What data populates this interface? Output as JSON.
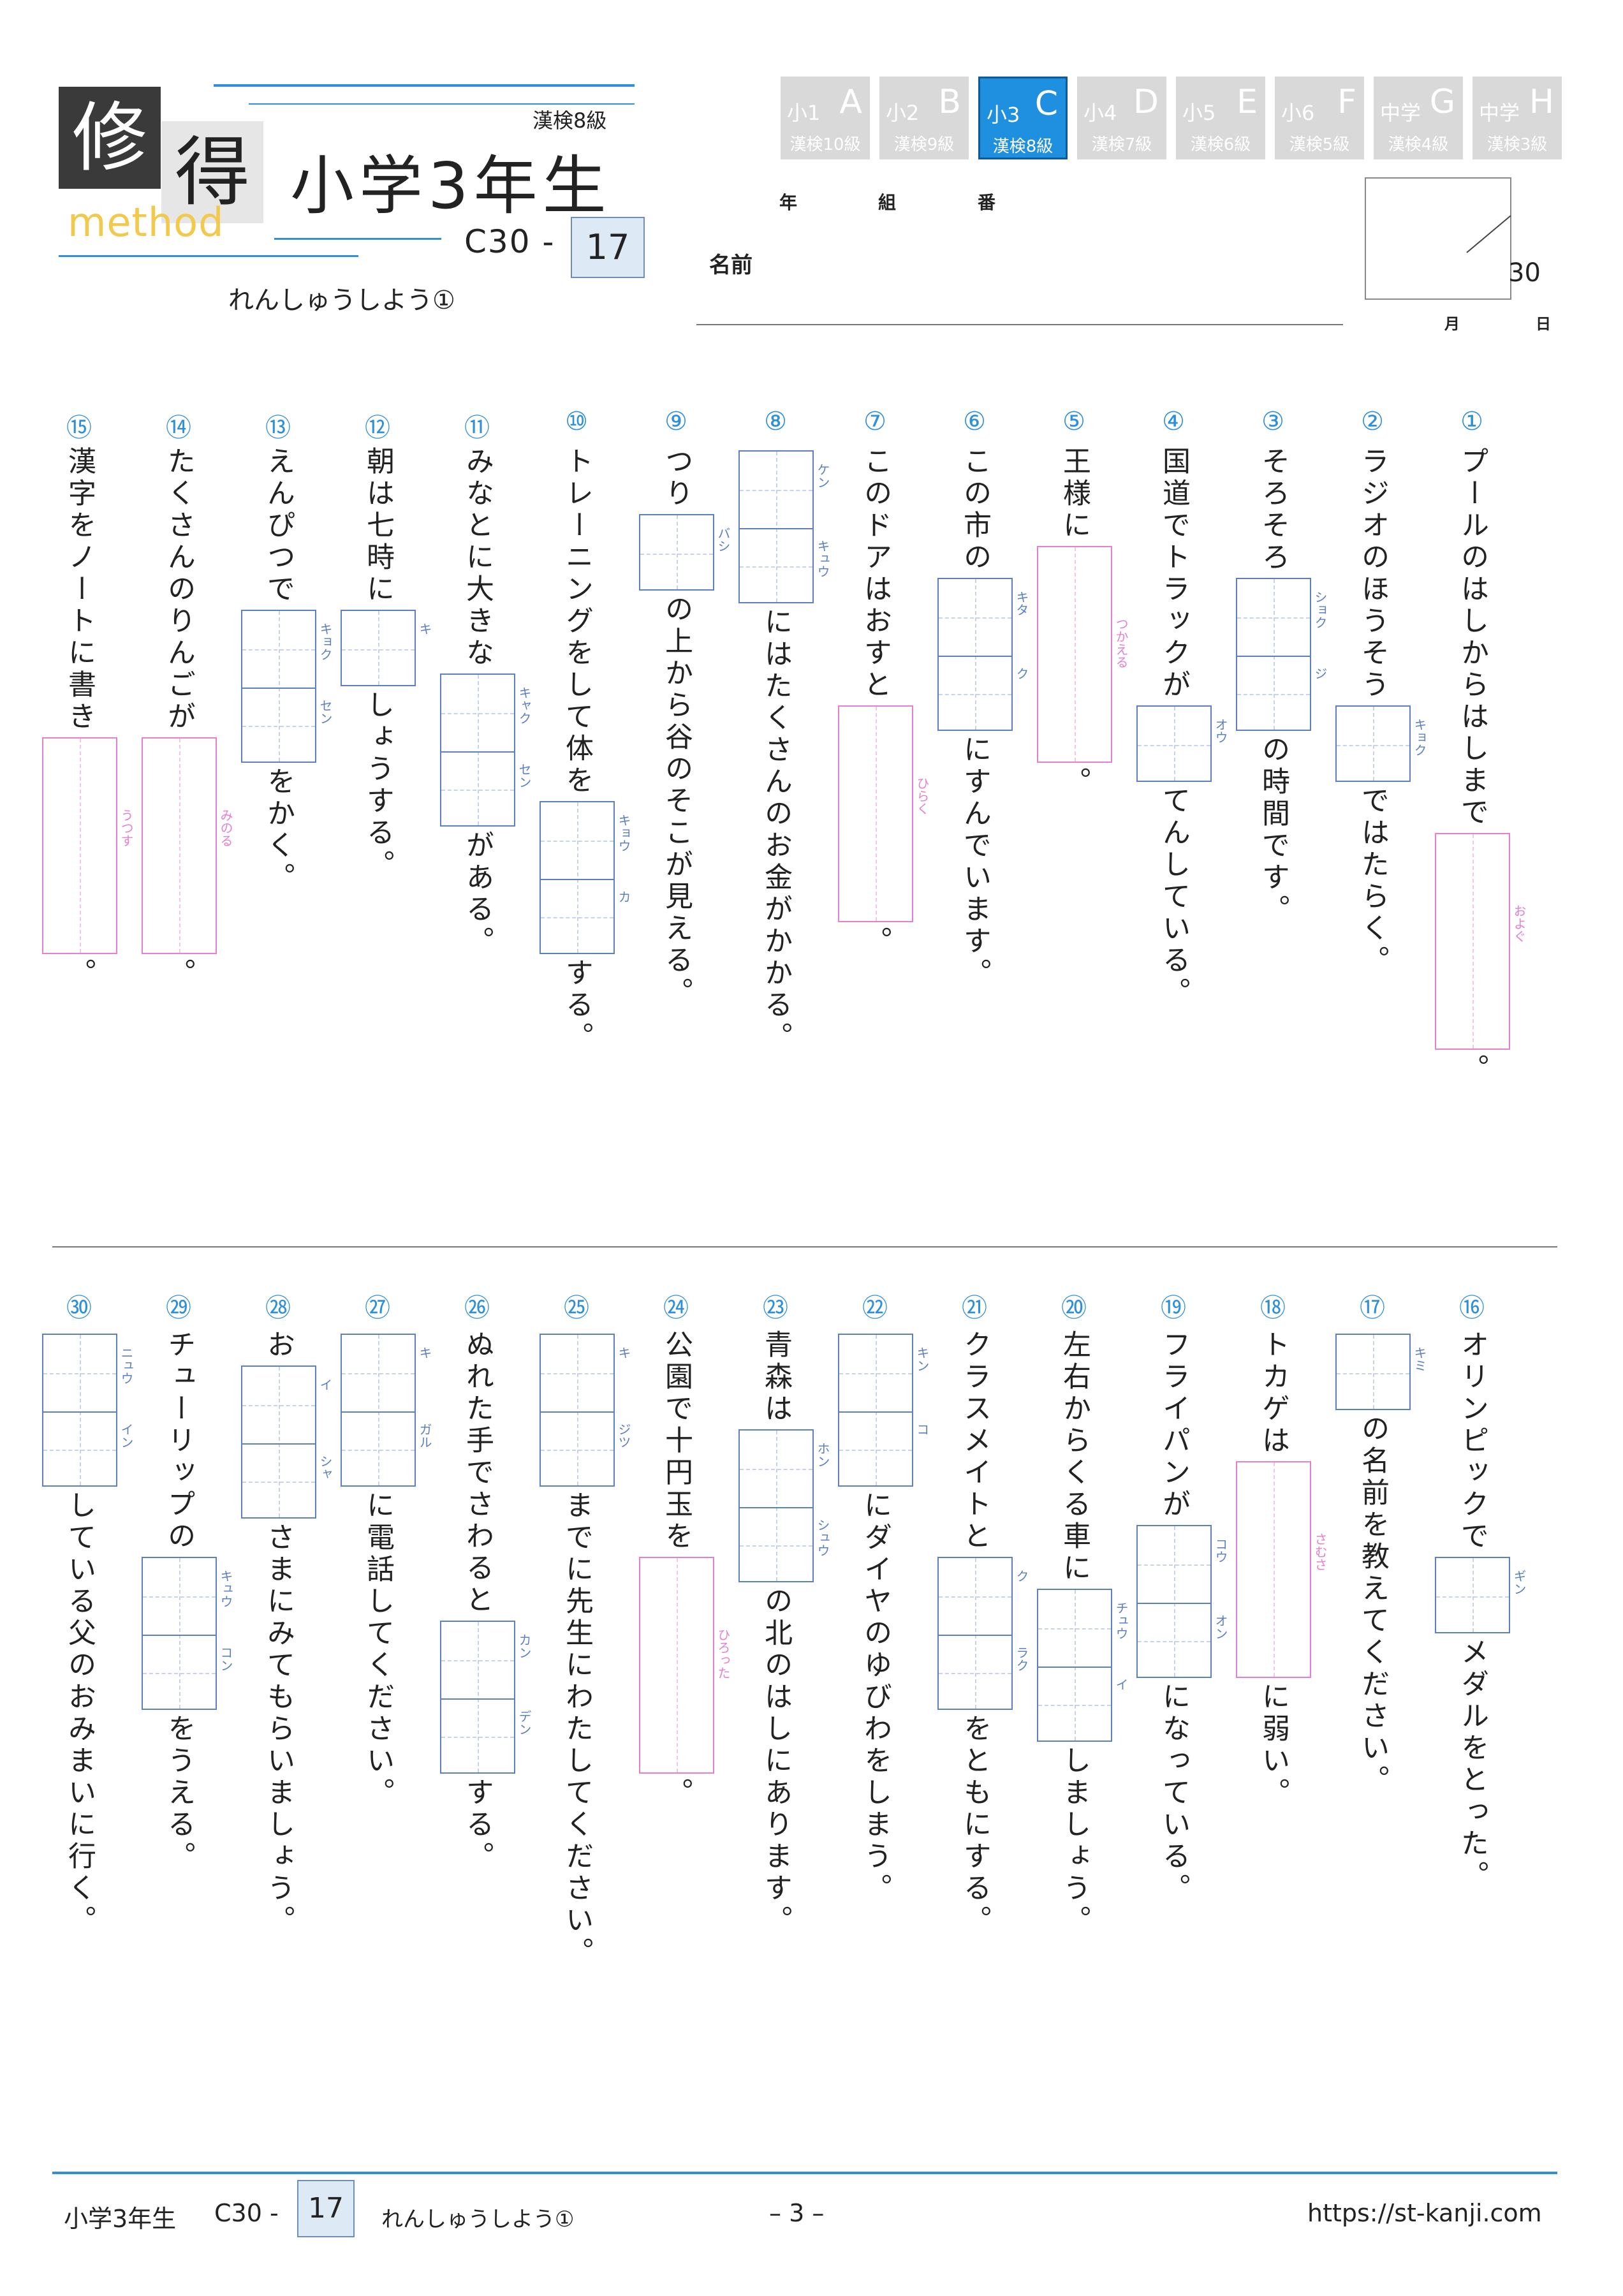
{
  "header": {
    "logo": {
      "char1": "修",
      "char2": "得",
      "sub": "method"
    },
    "grade_title": "小学3年生",
    "kanken": "漢検8級",
    "code": "C30 -",
    "code_num": "17",
    "subtitle": "れんしゅうしよう①"
  },
  "levels": [
    {
      "top": "小1",
      "letter": "A",
      "kanken": "漢検10級",
      "active": false
    },
    {
      "top": "小2",
      "letter": "B",
      "kanken": "漢検9級",
      "active": false
    },
    {
      "top": "小3",
      "letter": "C",
      "kanken": "漢検8級",
      "active": true
    },
    {
      "top": "小4",
      "letter": "D",
      "kanken": "漢検7級",
      "active": false
    },
    {
      "top": "小5",
      "letter": "E",
      "kanken": "漢検6級",
      "active": false
    },
    {
      "top": "小6",
      "letter": "F",
      "kanken": "漢検5級",
      "active": false
    },
    {
      "top": "中学",
      "letter": "G",
      "kanken": "漢検4級",
      "active": false
    },
    {
      "top": "中学",
      "letter": "H",
      "kanken": "漢検3級",
      "active": false
    }
  ],
  "student": {
    "nen": "年",
    "kumi": "組",
    "ban": "番",
    "name": "名前",
    "score": "30",
    "month": "月",
    "day": "日"
  },
  "questions": [
    {
      "num": "①",
      "segs": [
        {
          "t": "プールのはしからはしまで"
        },
        {
          "r": [
            "およぐ"
          ],
          "w": true
        },
        {
          "t": "。"
        }
      ]
    },
    {
      "num": "②",
      "segs": [
        {
          "t": "ラジオのほうそう"
        },
        {
          "r": [
            "キョク"
          ]
        },
        {
          "t": "ではたらく。"
        }
      ]
    },
    {
      "num": "③",
      "segs": [
        {
          "t": "そろそろ"
        },
        {
          "r": [
            "ショク",
            "ジ"
          ]
        },
        {
          "t": "の時間です。"
        }
      ]
    },
    {
      "num": "④",
      "segs": [
        {
          "t": "国道でトラックが"
        },
        {
          "r": [
            "オウ"
          ]
        },
        {
          "t": "てんしている。"
        }
      ]
    },
    {
      "num": "⑤",
      "segs": [
        {
          "t": "王様に"
        },
        {
          "r": [
            "つかえる"
          ],
          "w": true
        },
        {
          "t": "。"
        }
      ]
    },
    {
      "num": "⑥",
      "segs": [
        {
          "t": "この市の"
        },
        {
          "r": [
            "キタ",
            "ク"
          ]
        },
        {
          "t": "にすんでいます。"
        }
      ]
    },
    {
      "num": "⑦",
      "segs": [
        {
          "t": "このドアはおすと"
        },
        {
          "r": [
            "ひらく"
          ],
          "w": true
        },
        {
          "t": "。"
        }
      ]
    },
    {
      "num": "⑧",
      "segs": [
        {
          "r": [
            "ケン",
            "キュウ"
          ]
        },
        {
          "t": "にはたくさんのお金がかかる。"
        }
      ]
    },
    {
      "num": "⑨",
      "segs": [
        {
          "t": "つり"
        },
        {
          "r": [
            "バシ"
          ]
        },
        {
          "t": "の上から谷のそこが見える。"
        }
      ]
    },
    {
      "num": "⑩",
      "segs": [
        {
          "t": "トレーニングをして体を"
        },
        {
          "r": [
            "キョウ",
            "カ"
          ]
        },
        {
          "t": "する。"
        }
      ]
    },
    {
      "num": "⑪",
      "segs": [
        {
          "t": "みなとに大きな"
        },
        {
          "r": [
            "キャク",
            "セン"
          ]
        },
        {
          "t": "がある。"
        }
      ]
    },
    {
      "num": "⑫",
      "segs": [
        {
          "t": "朝は七時に"
        },
        {
          "r": [
            "キ"
          ]
        },
        {
          "t": "しょうする。"
        }
      ]
    },
    {
      "num": "⑬",
      "segs": [
        {
          "t": "えんぴつで"
        },
        {
          "r": [
            "キョク",
            "セン"
          ]
        },
        {
          "t": "をかく。"
        }
      ]
    },
    {
      "num": "⑭",
      "segs": [
        {
          "t": "たくさんのりんごが"
        },
        {
          "r": [
            "みのる"
          ],
          "w": true
        },
        {
          "t": "。"
        }
      ]
    },
    {
      "num": "⑮",
      "segs": [
        {
          "t": "漢字をノートに書き"
        },
        {
          "r": [
            "うつす"
          ],
          "w": true
        },
        {
          "t": "。"
        }
      ]
    },
    {
      "num": "⑯",
      "segs": [
        {
          "t": "オリンピックで"
        },
        {
          "r": [
            "ギン"
          ]
        },
        {
          "t": "メダルをとった。"
        }
      ]
    },
    {
      "num": "⑰",
      "segs": [
        {
          "r": [
            "キミ"
          ]
        },
        {
          "t": "の名前を教えてください。"
        }
      ]
    },
    {
      "num": "⑱",
      "segs": [
        {
          "t": "トカゲは"
        },
        {
          "r": [
            "さむさ"
          ],
          "w": true
        },
        {
          "t": "に弱い。"
        }
      ]
    },
    {
      "num": "⑲",
      "segs": [
        {
          "t": "フライパンが"
        },
        {
          "r": [
            "コウ",
            "オン"
          ]
        },
        {
          "t": "になっている。"
        }
      ]
    },
    {
      "num": "⑳",
      "segs": [
        {
          "t": "左右からくる車に"
        },
        {
          "r": [
            "チュウ",
            "イ"
          ]
        },
        {
          "t": "しましょう。"
        }
      ]
    },
    {
      "num": "㉑",
      "segs": [
        {
          "t": "クラスメイトと"
        },
        {
          "r": [
            "ク",
            "ラク"
          ]
        },
        {
          "t": "をともにする。"
        }
      ]
    },
    {
      "num": "㉒",
      "segs": [
        {
          "r": [
            "キン",
            "コ"
          ]
        },
        {
          "t": "にダイヤのゆびわをしまう。"
        }
      ]
    },
    {
      "num": "㉓",
      "segs": [
        {
          "t": "青森は"
        },
        {
          "r": [
            "ホン",
            "シュウ"
          ]
        },
        {
          "t": "の北のはしにあります。"
        }
      ]
    },
    {
      "num": "㉔",
      "segs": [
        {
          "t": "公園で十円玉を"
        },
        {
          "r": [
            "ひろった"
          ],
          "w": true
        },
        {
          "t": "。"
        }
      ]
    },
    {
      "num": "㉕",
      "segs": [
        {
          "r": [
            "キ",
            "ジツ"
          ]
        },
        {
          "t": "までに先生にわたしてください。"
        }
      ]
    },
    {
      "num": "㉖",
      "segs": [
        {
          "t": "ぬれた手でさわると"
        },
        {
          "r": [
            "カン",
            "デン"
          ]
        },
        {
          "t": "する。"
        }
      ]
    },
    {
      "num": "㉗",
      "segs": [
        {
          "r": [
            "キ",
            "ガル"
          ]
        },
        {
          "t": "に電話してください。"
        }
      ]
    },
    {
      "num": "㉘",
      "segs": [
        {
          "t": "お"
        },
        {
          "r": [
            "イ",
            "シャ"
          ]
        },
        {
          "t": "さまにみてもらいましょう。"
        }
      ]
    },
    {
      "num": "㉙",
      "segs": [
        {
          "t": "チューリップの"
        },
        {
          "r": [
            "キュウ",
            "コン"
          ]
        },
        {
          "t": "をうえる。"
        }
      ]
    },
    {
      "num": "㉚",
      "segs": [
        {
          "r": [
            "ニュウ",
            "イン"
          ]
        },
        {
          "t": "している父のおみまいに行く。"
        }
      ]
    }
  ],
  "footer": {
    "grade": "小学3年生",
    "code": "C30 -",
    "code_num": "17",
    "subtitle": "れんしゅうしよう①",
    "page": "– 3 –",
    "url": "https://st-kanji.com"
  }
}
